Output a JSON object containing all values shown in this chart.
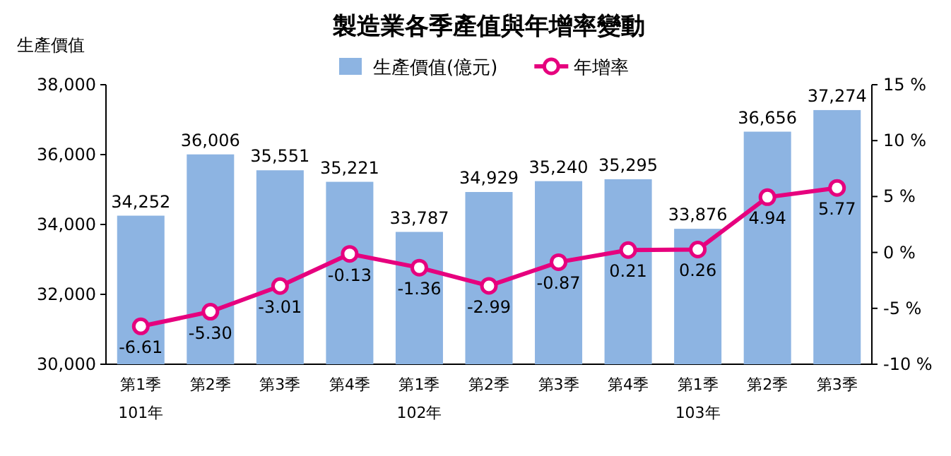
{
  "chart_data": {
    "type": "bar",
    "title": "製造業各季產值與年增率變動",
    "ylabel": "生產價值",
    "legend": "top right",
    "categories": [
      "第1季\n101年",
      "第2季",
      "第3季",
      "第4季",
      "第1季\n102年",
      "第2季",
      "第3季",
      "第4季",
      "第1季\n103年",
      "第2季",
      "第3季"
    ],
    "ylim": [
      30000,
      38000
    ],
    "yticks": [
      {
        "value": 30000,
        "label": "30,000"
      },
      {
        "value": 32000,
        "label": "32,000"
      },
      {
        "value": 34000,
        "label": "34,000"
      },
      {
        "value": 36000,
        "label": "36,000"
      },
      {
        "value": 38000,
        "label": "38,000"
      }
    ],
    "y2lim": [
      -10,
      15
    ],
    "y2ticks": [
      {
        "value": -10,
        "label": "-10 %"
      },
      {
        "value": -5,
        "label": "-5 %"
      },
      {
        "value": 0,
        "label": "0 %"
      },
      {
        "value": 5,
        "label": "5 %"
      },
      {
        "value": 10,
        "label": "10 %"
      },
      {
        "value": 15,
        "label": "15 %"
      }
    ],
    "series": [
      {
        "name": "生產價值(億元)",
        "color": "#8db4e2",
        "values": [
          34252,
          36006,
          35551,
          35221,
          33787,
          34929,
          35240,
          35295,
          33876,
          36656,
          37274
        ],
        "value_labels": [
          "34,252",
          "36,006",
          "35,551",
          "35,221",
          "33,787",
          "34,929",
          "35,240",
          "35,295",
          "33,876",
          "36,656",
          "37,274"
        ]
      },
      {
        "name": "年增率",
        "type": "line",
        "axis": "y2",
        "color": "#e6007e",
        "marker": "circle",
        "values": [
          -6.61,
          -5.3,
          -3.01,
          -0.13,
          -1.36,
          -2.99,
          -0.87,
          0.21,
          0.26,
          4.94,
          5.77
        ],
        "value_labels": [
          "-6.61",
          "-5.30",
          "-3.01",
          "-0.13",
          "-1.36",
          "-2.99",
          "-0.87",
          "0.21",
          "0.26",
          "4.94",
          "5.77"
        ]
      }
    ]
  }
}
